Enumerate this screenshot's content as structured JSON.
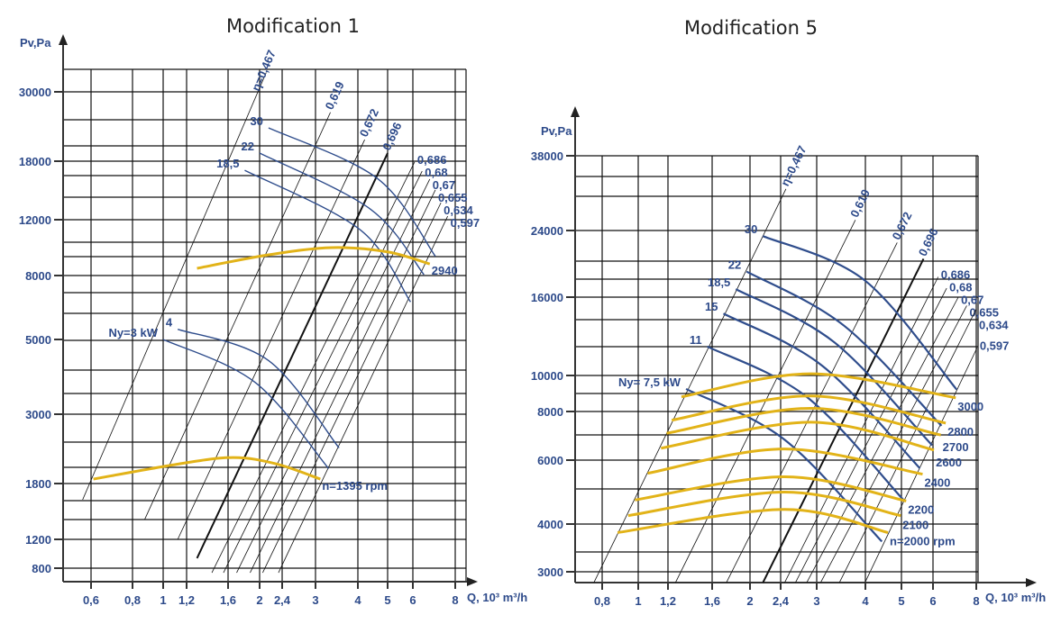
{
  "chart_data": [
    {
      "type": "line",
      "title": "Modification 1",
      "ylabel": "Pv,Pa",
      "xlabel": "Q, 10³ m³/h",
      "x_scale": "log",
      "y_scale": "log",
      "grid": true,
      "x_ticks": [
        "0,6",
        "0,8",
        "1",
        "1,2",
        "1,6",
        "2",
        "2,4",
        "3",
        "4",
        "5",
        "6",
        "8"
      ],
      "y_ticks": [
        "30000",
        "18000",
        "12000",
        "8000",
        "5000",
        "3000",
        "1800",
        "1200",
        "800"
      ],
      "efficiency_lines": [
        {
          "label": "η=0,467",
          "value": 0.467,
          "points": [
            [
              0.566,
              1600
            ],
            [
              2.11,
              34600
            ]
          ]
        },
        {
          "label": "0,619",
          "value": 0.619,
          "points": [
            [
              0.875,
              1390
            ],
            [
              3.32,
              25800
            ]
          ]
        },
        {
          "label": "0,672",
          "value": 0.672,
          "points": [
            [
              1.12,
              1200
            ],
            [
              4.21,
              21100
            ]
          ]
        },
        {
          "label": "0,696",
          "value": 0.696,
          "points": [
            [
              1.29,
              920
            ],
            [
              5.0,
              19100
            ]
          ]
        },
        {
          "label": "0,686",
          "value": 0.686,
          "points": [
            [
              1.43,
              750
            ],
            [
              6.07,
              17900
            ]
          ]
        },
        {
          "label": "0,68",
          "value": 0.68,
          "points": [
            [
              1.55,
              750
            ],
            [
              6.39,
              16800
            ]
          ]
        },
        {
          "label": "0,67",
          "value": 0.67,
          "points": [
            [
              1.7,
              750
            ],
            [
              6.73,
              15900
            ]
          ]
        },
        {
          "label": "0,655",
          "value": 0.655,
          "points": [
            [
              1.87,
              750
            ],
            [
              6.99,
              14750
            ]
          ]
        },
        {
          "label": "0,634",
          "value": 0.634,
          "points": [
            [
              2.05,
              750
            ],
            [
              7.26,
              13500
            ]
          ]
        },
        {
          "label": "0,597",
          "value": 0.597,
          "points": [
            [
              2.33,
              750
            ],
            [
              7.6,
              12300
            ]
          ]
        }
      ],
      "power_curves": [
        {
          "label": "30",
          "kw": 30,
          "points": [
            [
              2.15,
              23000
            ],
            [
              4.64,
              15950
            ],
            [
              6.99,
              9200
            ]
          ]
        },
        {
          "label": "22",
          "kw": 22,
          "points": [
            [
              2.0,
              19100
            ],
            [
              4.4,
              12900
            ],
            [
              6.47,
              8050
            ]
          ]
        },
        {
          "label": "18,5",
          "kw": 18.5,
          "points": [
            [
              1.8,
              16900
            ],
            [
              4.07,
              11150
            ],
            [
              5.9,
              6590
            ]
          ]
        },
        {
          "label": "4",
          "kw": 4,
          "points": [
            [
              1.12,
              5390
            ],
            [
              2.15,
              4330
            ],
            [
              3.52,
              2340
            ]
          ]
        },
        {
          "label": "Ny=3 kW",
          "kw": 3,
          "points": [
            [
              1.0,
              5000
            ],
            [
              1.94,
              3725
            ],
            [
              3.28,
              2010
            ]
          ]
        }
      ],
      "speed_curves": [
        {
          "label": "2940",
          "rpm": 2940,
          "points": [
            [
              1.29,
              8430
            ],
            [
              2.15,
              9300
            ],
            [
              3.36,
              9800
            ],
            [
              5.0,
              9500
            ],
            [
              6.73,
              8700
            ]
          ]
        },
        {
          "label": "n=1395 rpm",
          "rpm": 1395,
          "points": [
            [
              0.61,
              1860
            ],
            [
              1.13,
              2080
            ],
            [
              1.66,
              2180
            ],
            [
              2.29,
              2080
            ],
            [
              3.1,
              1860
            ]
          ]
        }
      ]
    },
    {
      "type": "line",
      "title": "Modification 5",
      "ylabel": "Pv,Pa",
      "xlabel": "Q, 10³ m³/h",
      "x_scale": "log",
      "y_scale": "log",
      "grid": true,
      "x_ticks": [
        "0,8",
        "1",
        "1,2",
        "1,6",
        "2",
        "2,4",
        "3",
        "4",
        "5",
        "6",
        "8"
      ],
      "y_ticks": [
        "38000",
        "24000",
        "16000",
        "10000",
        "8000",
        "6000",
        "4000",
        "3000"
      ],
      "efficiency_lines": [
        {
          "label": "η=0,467",
          "value": 0.467,
          "points": [
            [
              0.76,
              2810
            ],
            [
              2.48,
              31000
            ]
          ]
        },
        {
          "label": "0,619",
          "value": 0.619,
          "points": [
            [
              1.26,
              2810
            ],
            [
              3.77,
              25600
            ]
          ]
        },
        {
          "label": "0,672",
          "value": 0.672,
          "points": [
            [
              1.74,
              2810
            ],
            [
              4.87,
              22300
            ]
          ]
        },
        {
          "label": "0,696",
          "value": 0.696,
          "points": [
            [
              2.16,
              2810
            ],
            [
              5.68,
              20200
            ]
          ]
        },
        {
          "label": "0,686",
          "value": 0.686,
          "points": [
            [
              2.46,
              2810
            ],
            [
              6.21,
              18100
            ]
          ]
        },
        {
          "label": "0,68",
          "value": 0.68,
          "points": [
            [
              2.63,
              2810
            ],
            [
              6.57,
              16900
            ]
          ]
        },
        {
          "label": "0,67",
          "value": 0.67,
          "points": [
            [
              2.82,
              2810
            ],
            [
              7.1,
              16000
            ]
          ]
        },
        {
          "label": "0,655",
          "value": 0.655,
          "points": [
            [
              3.07,
              2810
            ],
            [
              7.51,
              15200
            ]
          ]
        },
        {
          "label": "0,634",
          "value": 0.634,
          "points": [
            [
              3.43,
              2810
            ],
            [
              8.0,
              14900
            ]
          ]
        },
        {
          "label": "0,597",
          "value": 0.597,
          "points": [
            [
              3.99,
              2810
            ],
            [
              8.04,
              11800
            ]
          ]
        }
      ],
      "power_curves": [
        {
          "label": "30",
          "kw": 30,
          "points": [
            [
              2.16,
              23200
            ],
            [
              3.99,
              17700
            ],
            [
              7.02,
              9170
            ]
          ]
        },
        {
          "label": "22",
          "kw": 22,
          "points": [
            [
              1.96,
              18700
            ],
            [
              3.52,
              13500
            ],
            [
              6.35,
              7350
            ]
          ]
        },
        {
          "label": "18,5",
          "kw": 18.5,
          "points": [
            [
              1.84,
              16800
            ],
            [
              3.33,
              12200
            ],
            [
              5.97,
              6550
            ]
          ]
        },
        {
          "label": "15",
          "kw": 15,
          "points": [
            [
              1.71,
              14500
            ],
            [
              3.1,
              10600
            ],
            [
              5.56,
              5700
            ]
          ]
        },
        {
          "label": "11",
          "kw": 11,
          "points": [
            [
              1.55,
              11900
            ],
            [
              2.82,
              8760
            ],
            [
              5.06,
              4660
            ]
          ]
        },
        {
          "label": "Ny= 7,5 kW",
          "kw": 7.5,
          "points": [
            [
              1.35,
              9200
            ],
            [
              2.46,
              6770
            ],
            [
              4.43,
              3600
            ]
          ]
        }
      ],
      "speed_curves": [
        {
          "label": "3000",
          "rpm": 3000,
          "points": [
            [
              1.31,
              8760
            ],
            [
              2.9,
              10100
            ],
            [
              6.98,
              8710
            ]
          ]
        },
        {
          "label": "2800",
          "rpm": 2800,
          "points": [
            [
              1.23,
              7600
            ],
            [
              2.9,
              8810
            ],
            [
              6.53,
              7470
            ]
          ]
        },
        {
          "label": "2700",
          "rpm": 2700,
          "points": [
            [
              1.19,
              7030
            ],
            [
              2.9,
              8160
            ],
            [
              6.32,
              6960
            ]
          ]
        },
        {
          "label": "2600",
          "rpm": 2600,
          "points": [
            [
              1.15,
              6440
            ],
            [
              2.9,
              7510
            ],
            [
              6.04,
              6370
            ]
          ]
        },
        {
          "label": "2400",
          "rpm": 2400,
          "points": [
            [
              1.06,
              5520
            ],
            [
              2.46,
              6410
            ],
            [
              5.65,
              5490
            ]
          ]
        },
        {
          "label": "2200",
          "rpm": 2200,
          "points": [
            [
              0.98,
              4660
            ],
            [
              2.46,
              5400
            ],
            [
              5.14,
              4630
            ]
          ]
        },
        {
          "label": "2100",
          "rpm": 2100,
          "points": [
            [
              0.94,
              4220
            ],
            [
              2.46,
              4900
            ],
            [
              4.98,
              4220
            ]
          ]
        },
        {
          "label": "n=2000 rpm",
          "rpm": 2000,
          "points": [
            [
              0.88,
              3800
            ],
            [
              2.46,
              4390
            ],
            [
              4.6,
              3800
            ]
          ]
        }
      ]
    }
  ],
  "colors": {
    "text": "#2d4a8a",
    "power_curve": "#2f4d8c",
    "speed_curve": "#e2b318",
    "grid": "#111111"
  }
}
